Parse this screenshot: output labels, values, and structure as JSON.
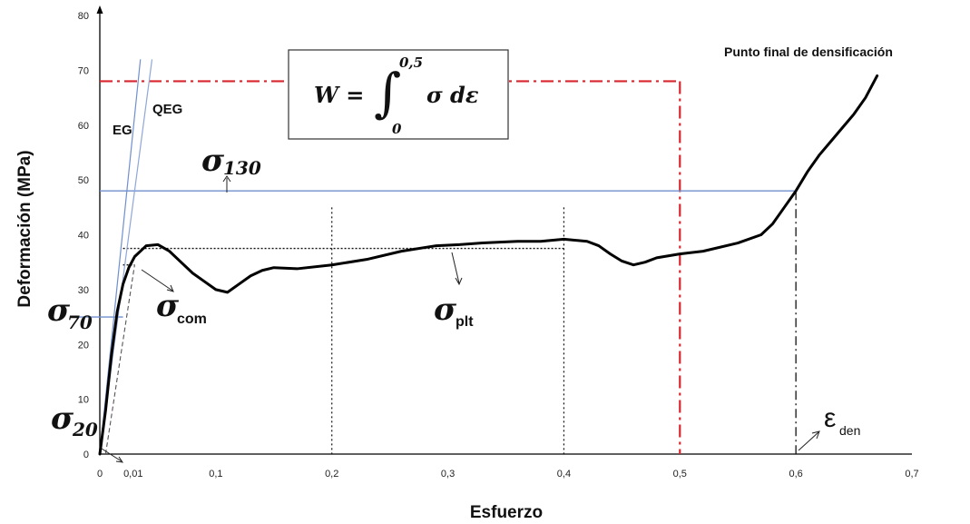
{
  "chart_data": {
    "type": "line",
    "title": "",
    "xlabel": "Esfuerzo",
    "ylabel": "Deformación (MPa)",
    "xlim": [
      0,
      0.7
    ],
    "ylim": [
      0,
      80
    ],
    "x_ticks": [
      "0",
      "0,01",
      "0,1",
      "0,2",
      "0,3",
      "0,4",
      "0,5",
      "0,6",
      "0,7"
    ],
    "x_tick_values": [
      0,
      0.01,
      0.1,
      0.2,
      0.3,
      0.4,
      0.5,
      0.6,
      0.7
    ],
    "y_ticks": [
      "0",
      "10",
      "20",
      "30",
      "40",
      "50",
      "60",
      "70",
      "80"
    ],
    "y_tick_values": [
      0,
      10,
      20,
      30,
      40,
      50,
      60,
      70,
      80
    ],
    "series": [
      {
        "color": "#000000",
        "x": [
          0,
          0.005,
          0.01,
          0.015,
          0.02,
          0.025,
          0.03,
          0.04,
          0.05,
          0.06,
          0.07,
          0.08,
          0.09,
          0.1,
          0.11,
          0.12,
          0.13,
          0.14,
          0.15,
          0.17,
          0.2,
          0.23,
          0.26,
          0.29,
          0.31,
          0.33,
          0.36,
          0.38,
          0.4,
          0.42,
          0.43,
          0.44,
          0.45,
          0.46,
          0.47,
          0.48,
          0.5,
          0.52,
          0.55,
          0.57,
          0.58,
          0.59,
          0.6,
          0.61,
          0.62,
          0.63,
          0.64,
          0.65,
          0.66,
          0.67
        ],
        "y": [
          0,
          8,
          18,
          26,
          31,
          34,
          36,
          38,
          38.2,
          37,
          35,
          33,
          31.5,
          30,
          29.5,
          31,
          32.5,
          33.5,
          34,
          33.8,
          34.5,
          35.5,
          37,
          38,
          38.2,
          38.5,
          38.8,
          38.8,
          39.2,
          38.8,
          38,
          36.5,
          35.2,
          34.5,
          35,
          35.8,
          36.5,
          37,
          38.5,
          40,
          42,
          45,
          48,
          51.5,
          54.5,
          57,
          59.5,
          62,
          65,
          69
        ]
      }
    ],
    "reference_lines": {
      "red_dashdot_y": 68,
      "red_dashdot_x": 0.5,
      "blue_horizontal_y": 48,
      "blue_short_horizontal_y": 25,
      "black_dotted_horizontal_y": [
        37.5,
        34.5
      ],
      "black_dotted_vertical_x": [
        0.2,
        0.4
      ],
      "black_dashdot_vertical_x": 0.6,
      "eg_line": {
        "x0": 0,
        "y0": 0,
        "x1": 0.035,
        "y1": 72
      },
      "qeg_line": {
        "x0": 0,
        "y0": 0,
        "x1": 0.045,
        "y1": 72
      },
      "dashed_line": {
        "x0": 0.005,
        "y0": 0,
        "x1": 0.03,
        "y1": 34.5
      }
    },
    "annotations": {
      "formula": "W = ∫₀^0,5 σ dε",
      "formula_integrand": "σ dε",
      "formula_lhs": "W =",
      "formula_upper": "0,5",
      "formula_lower": "0",
      "densification_label": "Punto final de densificación",
      "eg": "EG",
      "qeg": "QEG",
      "sigma": "σ",
      "sigma_130_sub": "130",
      "sigma_70_sub": "70",
      "sigma_20_sub": "20",
      "sigma_com_sub": "com",
      "sigma_plt_sub": "plt",
      "epsilon": "ε",
      "epsilon_den_sub": "den"
    },
    "grid": false,
    "legend": "none"
  }
}
